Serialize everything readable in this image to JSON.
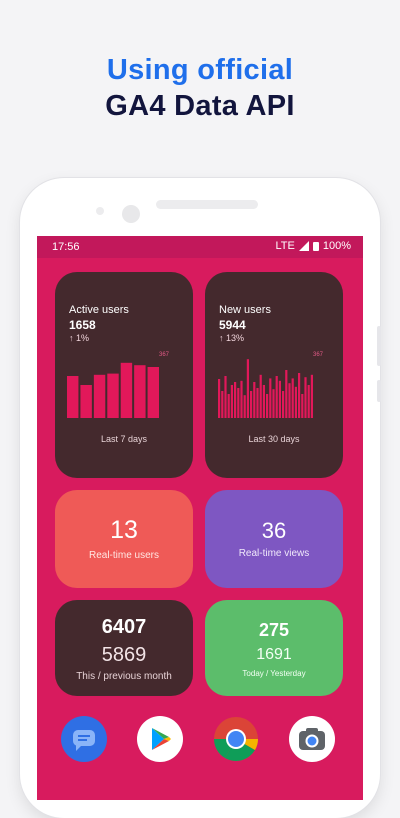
{
  "headline": {
    "line1": "Using official",
    "line2": "GA4 Data API"
  },
  "status_bar": {
    "time": "17:56",
    "network": "LTE",
    "battery": "100%"
  },
  "widgets": {
    "active_users": {
      "label": "Active users",
      "value": "1658",
      "delta": "1%",
      "peak_label": "367",
      "footer": "Last 7 days",
      "bars": [
        0.7,
        0.55,
        0.72,
        0.74,
        0.92,
        0.88,
        0.85
      ]
    },
    "new_users": {
      "label": "New users",
      "value": "5944",
      "delta": "13%",
      "peak_label": "367",
      "footer": "Last 30 days",
      "bars": [
        0.65,
        0.45,
        0.7,
        0.4,
        0.55,
        0.6,
        0.5,
        0.62,
        0.38,
        0.98,
        0.45,
        0.6,
        0.5,
        0.72,
        0.55,
        0.4,
        0.66,
        0.48,
        0.7,
        0.62,
        0.45,
        0.8,
        0.58,
        0.66,
        0.52,
        0.75,
        0.4,
        0.68,
        0.55,
        0.72
      ]
    },
    "realtime_users": {
      "value": "13",
      "label": "Real-time users",
      "color": "#ef5a57"
    },
    "realtime_views": {
      "value": "36",
      "label": "Real-time views",
      "color": "#7e57c2"
    },
    "month_compare": {
      "current": "6407",
      "previous": "5869",
      "label": "This / previous month"
    },
    "day_compare": {
      "current": "275",
      "previous": "1691",
      "label": "Today / Yesterday",
      "color": "#5cbd6b"
    }
  },
  "dock": [
    {
      "name": "messages",
      "icon": "messages-icon"
    },
    {
      "name": "play-store",
      "icon": "play-store-icon"
    },
    {
      "name": "chrome",
      "icon": "chrome-icon"
    },
    {
      "name": "camera",
      "icon": "camera-icon"
    }
  ],
  "colors": {
    "bar": "#e2185a",
    "screen_bg": "#d81b5e",
    "card_dark": "#44292d"
  }
}
